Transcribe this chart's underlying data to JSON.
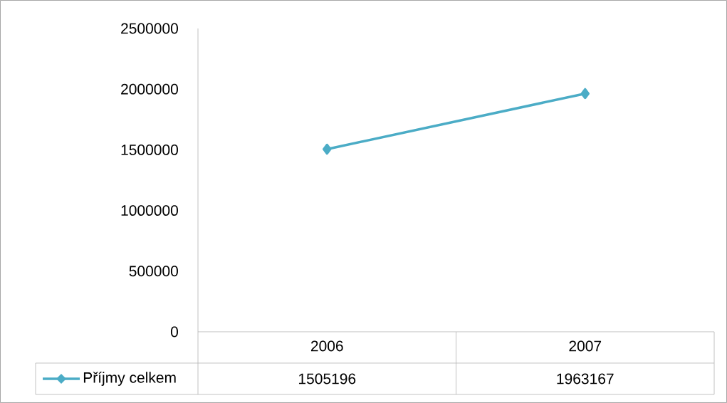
{
  "chart_data": {
    "type": "line",
    "categories": [
      "2006",
      "2007"
    ],
    "series": [
      {
        "name": "Příjmy celkem",
        "color": "#4bacc6",
        "values": [
          1505196,
          1963167
        ]
      }
    ],
    "ylim": [
      0,
      2500000
    ],
    "yticks": [
      0,
      500000,
      1000000,
      1500000,
      2000000,
      2500000
    ],
    "marker": "diamond",
    "line_style": "solid",
    "grid": false,
    "legend": "bottom",
    "data_labels": true
  }
}
